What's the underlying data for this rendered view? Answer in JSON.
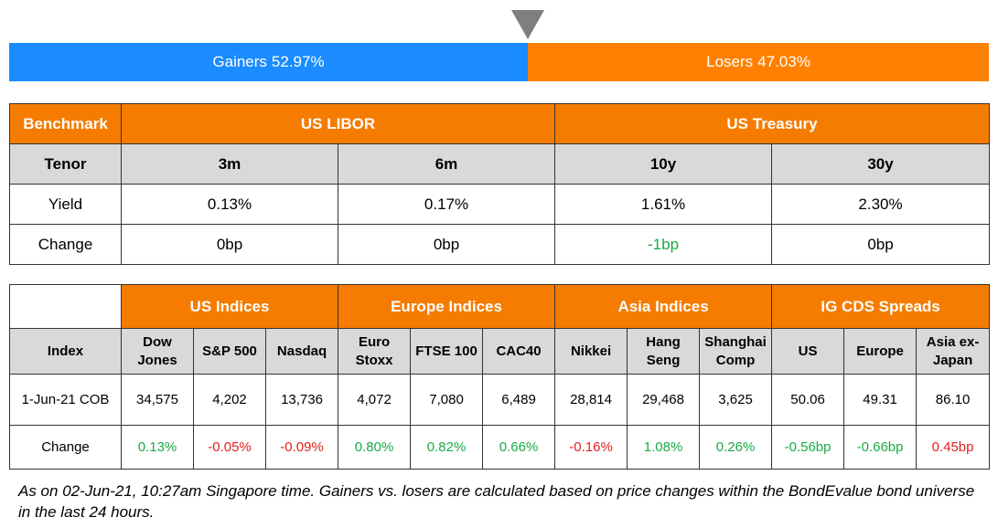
{
  "summary": {
    "gainers_label": "Gainers",
    "gainers_pct": "52.97%",
    "gainers_fraction": 0.5297,
    "losers_label": "Losers",
    "losers_pct": "47.03%",
    "losers_fraction": 0.4703
  },
  "benchmark_table": {
    "benchmark_label": "Benchmark",
    "groups": [
      "US LIBOR",
      "US Treasury"
    ],
    "tenor_label": "Tenor",
    "tenors": [
      "3m",
      "6m",
      "10y",
      "30y"
    ],
    "yield_label": "Yield",
    "yields": [
      "0.13%",
      "0.17%",
      "1.61%",
      "2.30%"
    ],
    "change_label": "Change",
    "changes": [
      "0bp",
      "0bp",
      "-1bp",
      "0bp"
    ],
    "change_signs": [
      "flat",
      "flat",
      "pos",
      "flat"
    ]
  },
  "indices_table": {
    "groups": [
      "US Indices",
      "Europe Indices",
      "Asia Indices",
      "IG CDS Spreads"
    ],
    "index_label": "Index",
    "columns": [
      [
        "Dow",
        "Jones"
      ],
      [
        "S&P 500"
      ],
      [
        "Nasdaq"
      ],
      [
        "Euro",
        "Stoxx"
      ],
      [
        "FTSE 100"
      ],
      [
        "CAC40"
      ],
      [
        "Nikkei"
      ],
      [
        "Hang",
        "Seng"
      ],
      [
        "Shanghai",
        "Comp"
      ],
      [
        "US"
      ],
      [
        "Europe"
      ],
      [
        "Asia ex-",
        "Japan"
      ]
    ],
    "date_label": "1-Jun-21 COB",
    "values": [
      "34,575",
      "4,202",
      "13,736",
      "4,072",
      "7,080",
      "6,489",
      "28,814",
      "29,468",
      "3,625",
      "50.06",
      "49.31",
      "86.10"
    ],
    "change_label": "Change",
    "changes": [
      "0.13%",
      "-0.05%",
      "-0.09%",
      "0.80%",
      "0.82%",
      "0.66%",
      "-0.16%",
      "1.08%",
      "0.26%",
      "-0.56bp",
      "-0.66bp",
      "0.45bp"
    ],
    "change_signs": [
      "pos",
      "neg",
      "neg",
      "pos",
      "pos",
      "pos",
      "neg",
      "pos",
      "pos",
      "pos",
      "pos",
      "neg"
    ]
  },
  "footnote": "As on 02-Jun-21, 10:27am Singapore time. Gainers vs. losers are calculated based on price changes within the BondEvalue bond universe in the last 24 hours.",
  "colors": {
    "gainers": "#1a8cff",
    "losers": "#ff8000",
    "header": "#f57c00",
    "subheader": "#d9d9d9",
    "positive": "#1aab45",
    "negative": "#e21f1f",
    "marker": "#7f7f7f"
  }
}
